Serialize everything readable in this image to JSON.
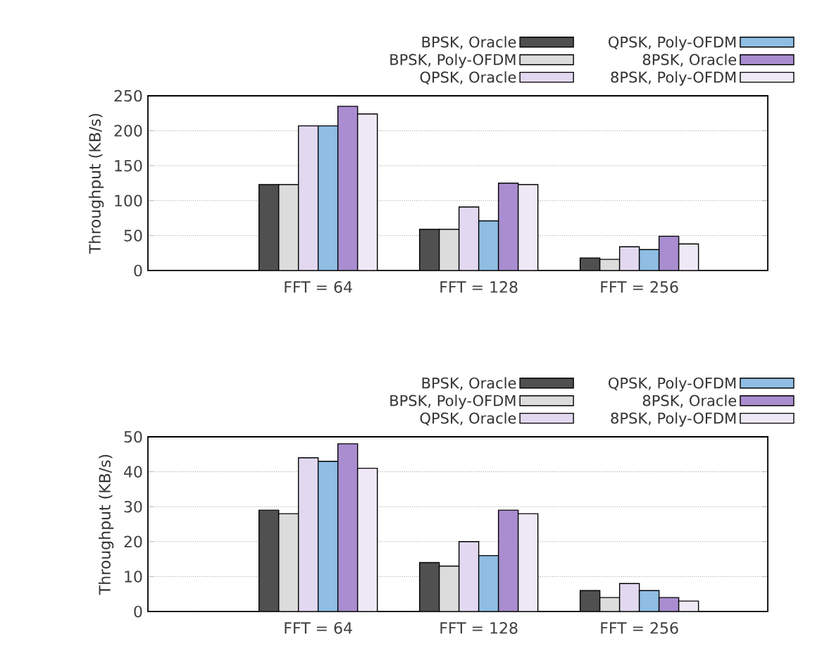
{
  "chart_data": [
    {
      "type": "bar",
      "ylabel": "Throughput (KB/s)",
      "categories": [
        "FFT = 64",
        "FFT = 128",
        "FFT = 256"
      ],
      "ylim": [
        0,
        250
      ],
      "yticks": [
        0,
        50,
        100,
        150,
        200,
        250
      ],
      "grid": "y",
      "legend": "top right",
      "series": [
        {
          "name": "BPSK, Oracle",
          "color": "#505050",
          "values": [
            123,
            59,
            18
          ]
        },
        {
          "name": "BPSK, Poly-OFDM",
          "color": "#dcdcdc",
          "values": [
            123,
            59,
            16
          ]
        },
        {
          "name": "QPSK, Oracle",
          "color": "#e2d8f0",
          "values": [
            207,
            91,
            34
          ]
        },
        {
          "name": "QPSK, Poly-OFDM",
          "color": "#8fbde3",
          "values": [
            207,
            71,
            30
          ]
        },
        {
          "name": "8PSK, Oracle",
          "color": "#a98dd0",
          "values": [
            235,
            125,
            49
          ]
        },
        {
          "name": "8PSK, Poly-OFDM",
          "color": "#efe9f7",
          "values": [
            224,
            123,
            38
          ]
        }
      ]
    },
    {
      "type": "bar",
      "ylabel": "Throughput (KB/s)",
      "categories": [
        "FFT = 64",
        "FFT = 128",
        "FFT = 256"
      ],
      "ylim": [
        0,
        50
      ],
      "yticks": [
        0,
        10,
        20,
        30,
        40,
        50
      ],
      "grid": "y",
      "legend": "top right",
      "series": [
        {
          "name": "BPSK, Oracle",
          "color": "#505050",
          "values": [
            29,
            14,
            6
          ]
        },
        {
          "name": "BPSK, Poly-OFDM",
          "color": "#dcdcdc",
          "values": [
            28,
            13,
            4
          ]
        },
        {
          "name": "QPSK, Oracle",
          "color": "#e2d8f0",
          "values": [
            44,
            20,
            8
          ]
        },
        {
          "name": "QPSK, Poly-OFDM",
          "color": "#8fbde3",
          "values": [
            43,
            16,
            6
          ]
        },
        {
          "name": "8PSK, Oracle",
          "color": "#a98dd0",
          "values": [
            48,
            29,
            4
          ]
        },
        {
          "name": "8PSK, Poly-OFDM",
          "color": "#efe9f7",
          "values": [
            41,
            28,
            3
          ]
        }
      ]
    }
  ]
}
